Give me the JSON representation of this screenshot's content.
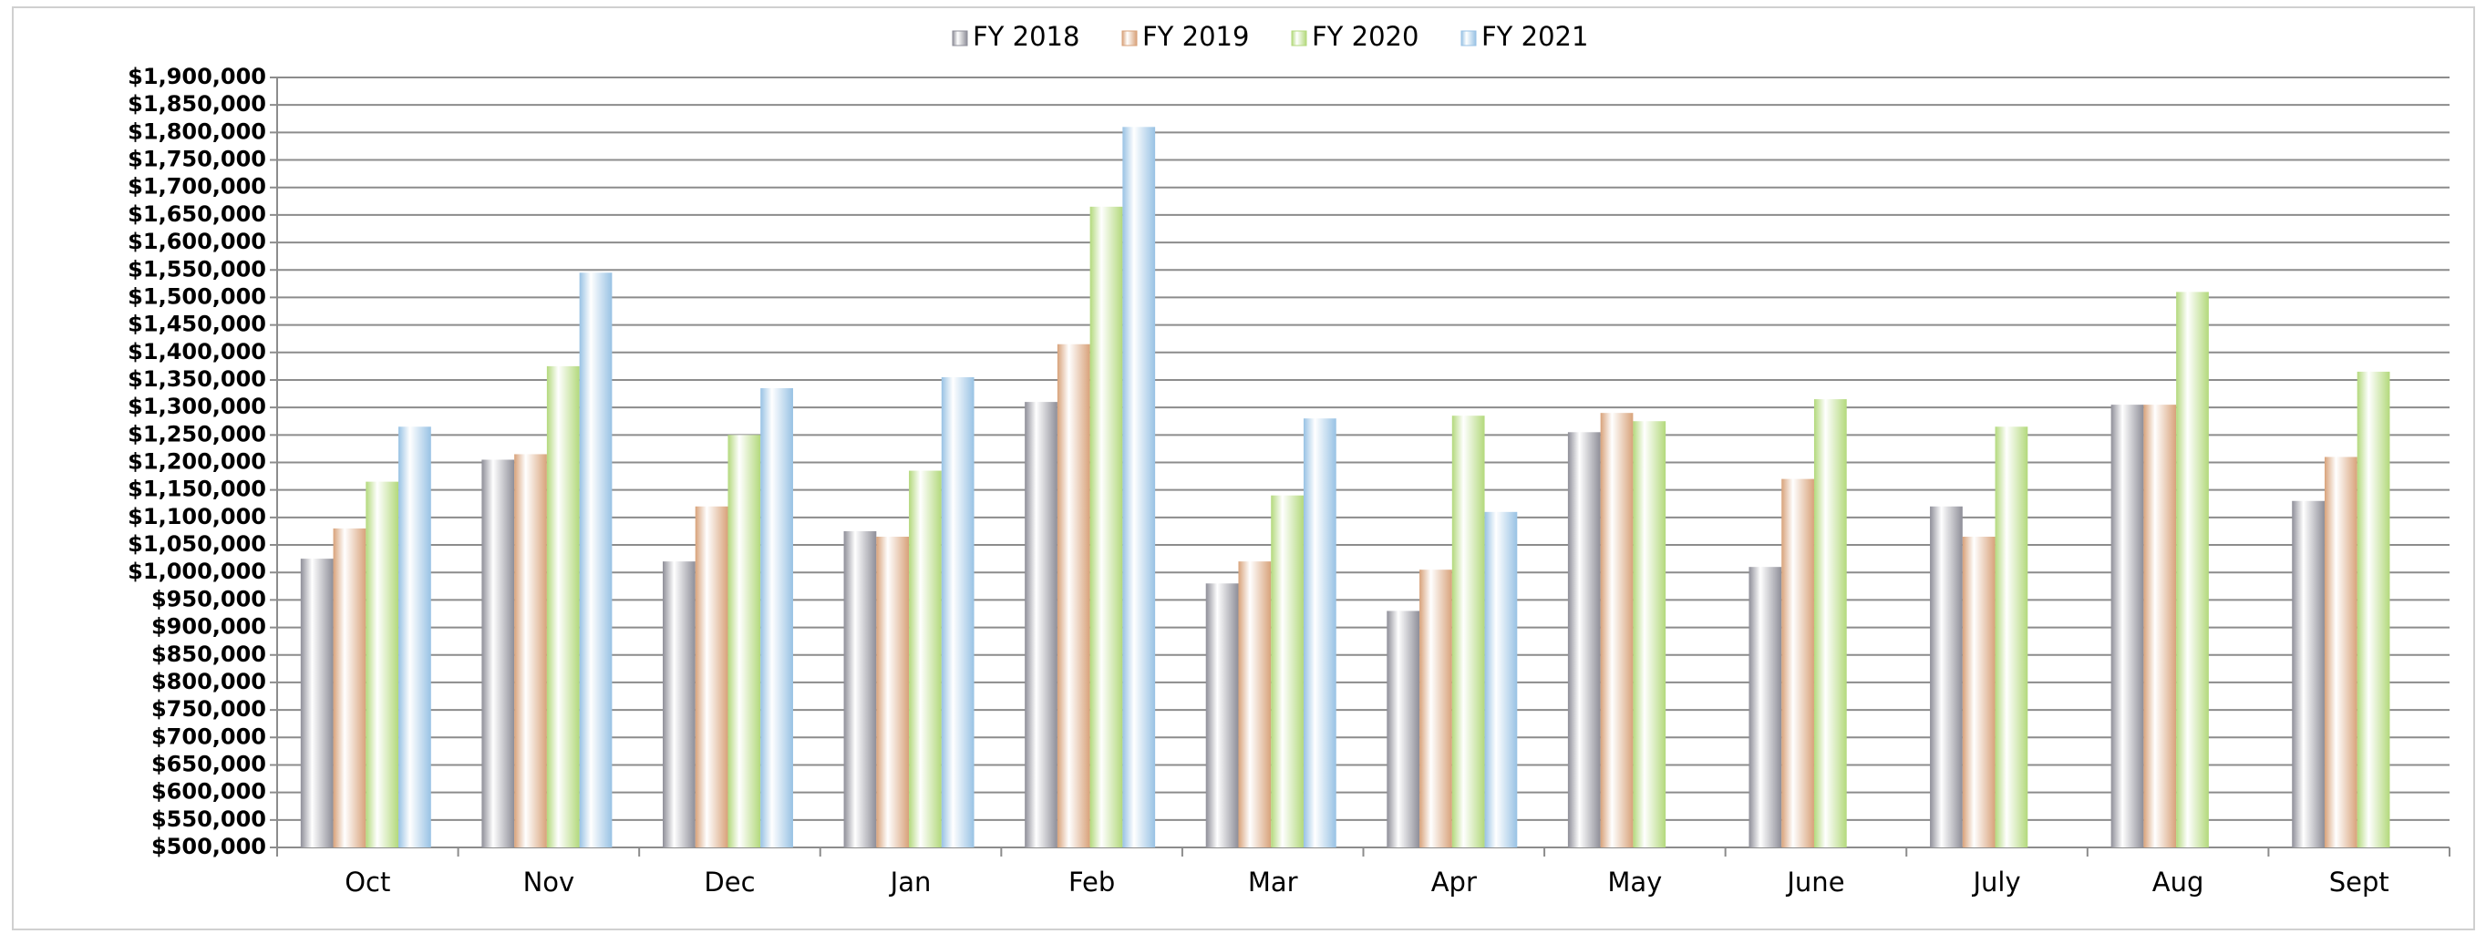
{
  "chart_data": {
    "type": "bar",
    "categories": [
      "Oct",
      "Nov",
      "Dec",
      "Jan",
      "Feb",
      "Mar",
      "Apr",
      "May",
      "June",
      "July",
      "Aug",
      "Sept"
    ],
    "series": [
      {
        "name": "FY 2018",
        "color": "#8e8e98",
        "values": [
          1025000,
          1205000,
          1020000,
          1075000,
          1310000,
          980000,
          930000,
          1255000,
          1010000,
          1120000,
          1305000,
          1130000
        ]
      },
      {
        "name": "FY 2019",
        "color": "#d8a27a",
        "values": [
          1080000,
          1215000,
          1120000,
          1065000,
          1415000,
          1020000,
          1005000,
          1290000,
          1170000,
          1065000,
          1305000,
          1210000
        ]
      },
      {
        "name": "FY 2020",
        "color": "#b3d97c",
        "values": [
          1165000,
          1375000,
          1250000,
          1185000,
          1665000,
          1140000,
          1285000,
          1275000,
          1315000,
          1265000,
          1510000,
          1365000
        ]
      },
      {
        "name": "FY 2021",
        "color": "#98c2e4",
        "values": [
          1265000,
          1545000,
          1335000,
          1355000,
          1810000,
          1280000,
          1110000,
          null,
          null,
          null,
          null,
          null
        ]
      }
    ],
    "ylim": [
      500000,
      1900000
    ],
    "yticks": [
      {
        "value": 500000,
        "label": "$500,000"
      },
      {
        "value": 550000,
        "label": "$550,000"
      },
      {
        "value": 600000,
        "label": "$600,000"
      },
      {
        "value": 650000,
        "label": "$650,000"
      },
      {
        "value": 700000,
        "label": "$700,000"
      },
      {
        "value": 750000,
        "label": "$750,000"
      },
      {
        "value": 800000,
        "label": "$800,000"
      },
      {
        "value": 850000,
        "label": "$850,000"
      },
      {
        "value": 900000,
        "label": "$900,000"
      },
      {
        "value": 950000,
        "label": "$950,000"
      },
      {
        "value": 1000000,
        "label": "$1,000,000"
      },
      {
        "value": 1050000,
        "label": "$1,050,000"
      },
      {
        "value": 1100000,
        "label": "$1,100,000"
      },
      {
        "value": 1150000,
        "label": "$1,150,000"
      },
      {
        "value": 1200000,
        "label": "$1,200,000"
      },
      {
        "value": 1250000,
        "label": "$1,250,000"
      },
      {
        "value": 1300000,
        "label": "$1,300,000"
      },
      {
        "value": 1350000,
        "label": "$1,350,000"
      },
      {
        "value": 1400000,
        "label": "$1,400,000"
      },
      {
        "value": 1450000,
        "label": "$1,450,000"
      },
      {
        "value": 1500000,
        "label": "$1,500,000"
      },
      {
        "value": 1550000,
        "label": "$1,550,000"
      },
      {
        "value": 1600000,
        "label": "$1,600,000"
      },
      {
        "value": 1650000,
        "label": "$1,650,000"
      },
      {
        "value": 1700000,
        "label": "$1,700,000"
      },
      {
        "value": 1750000,
        "label": "$1,750,000"
      },
      {
        "value": 1800000,
        "label": "$1,800,000"
      },
      {
        "value": 1850000,
        "label": "$1,850,000"
      },
      {
        "value": 1900000,
        "label": "$1,900,000"
      }
    ],
    "grid": true,
    "legend": "top"
  }
}
